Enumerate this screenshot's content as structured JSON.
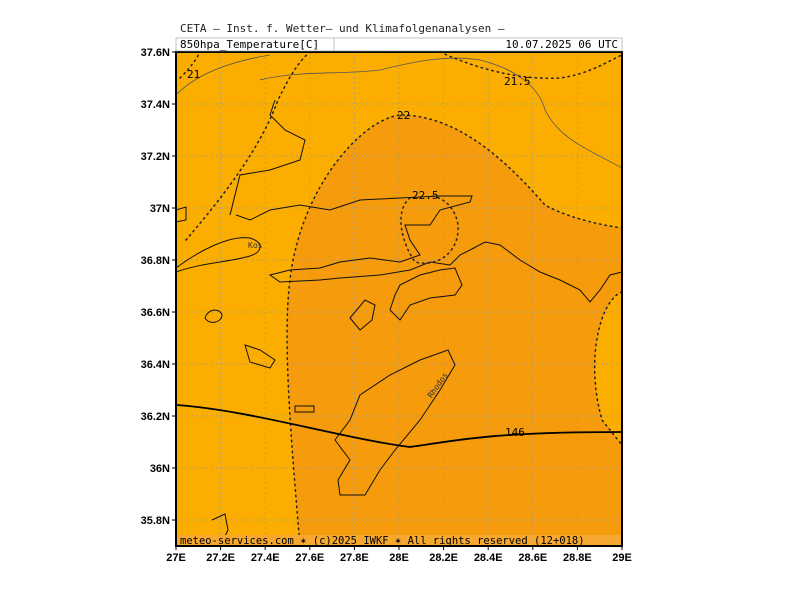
{
  "header": {
    "title": "CETA – Inst. f. Wetter– und Klimafolgenanalysen –",
    "parameter": "850hpa_Temperature[C]",
    "datetime": "10.07.2025 06 UTC"
  },
  "map": {
    "xlim": [
      27,
      29
    ],
    "ylim": [
      35.7,
      37.6
    ],
    "lon_ticks": [
      {
        "value": 27,
        "label": "27E"
      },
      {
        "value": 27.2,
        "label": "27.2E"
      },
      {
        "value": 27.4,
        "label": "27.4E"
      },
      {
        "value": 27.6,
        "label": "27.6E"
      },
      {
        "value": 27.8,
        "label": "27.8E"
      },
      {
        "value": 28,
        "label": "28E"
      },
      {
        "value": 28.2,
        "label": "28.2E"
      },
      {
        "value": 28.4,
        "label": "28.4E"
      },
      {
        "value": 28.6,
        "label": "28.6E"
      },
      {
        "value": 28.8,
        "label": "28.8E"
      },
      {
        "value": 29,
        "label": "29E"
      }
    ],
    "lat_ticks": [
      {
        "value": 35.8,
        "label": "35.8N"
      },
      {
        "value": 36,
        "label": "36N"
      },
      {
        "value": 36.2,
        "label": "36.2N"
      },
      {
        "value": 36.4,
        "label": "36.4N"
      },
      {
        "value": 36.6,
        "label": "36.6N"
      },
      {
        "value": 36.8,
        "label": "36.8N"
      },
      {
        "value": 37,
        "label": "37N"
      },
      {
        "value": 37.2,
        "label": "37.2N"
      },
      {
        "value": 37.4,
        "label": "37.4N"
      },
      {
        "value": 37.6,
        "label": "37.6N"
      }
    ],
    "contour_labels": [
      "21",
      "21.5",
      "22",
      "22.5",
      "146"
    ],
    "places": [
      "Kos",
      "Rhodos"
    ]
  },
  "footer": "meteo-services.com ✶ (c)2025 IWKF ✶ All rights reserved (12+018)"
}
